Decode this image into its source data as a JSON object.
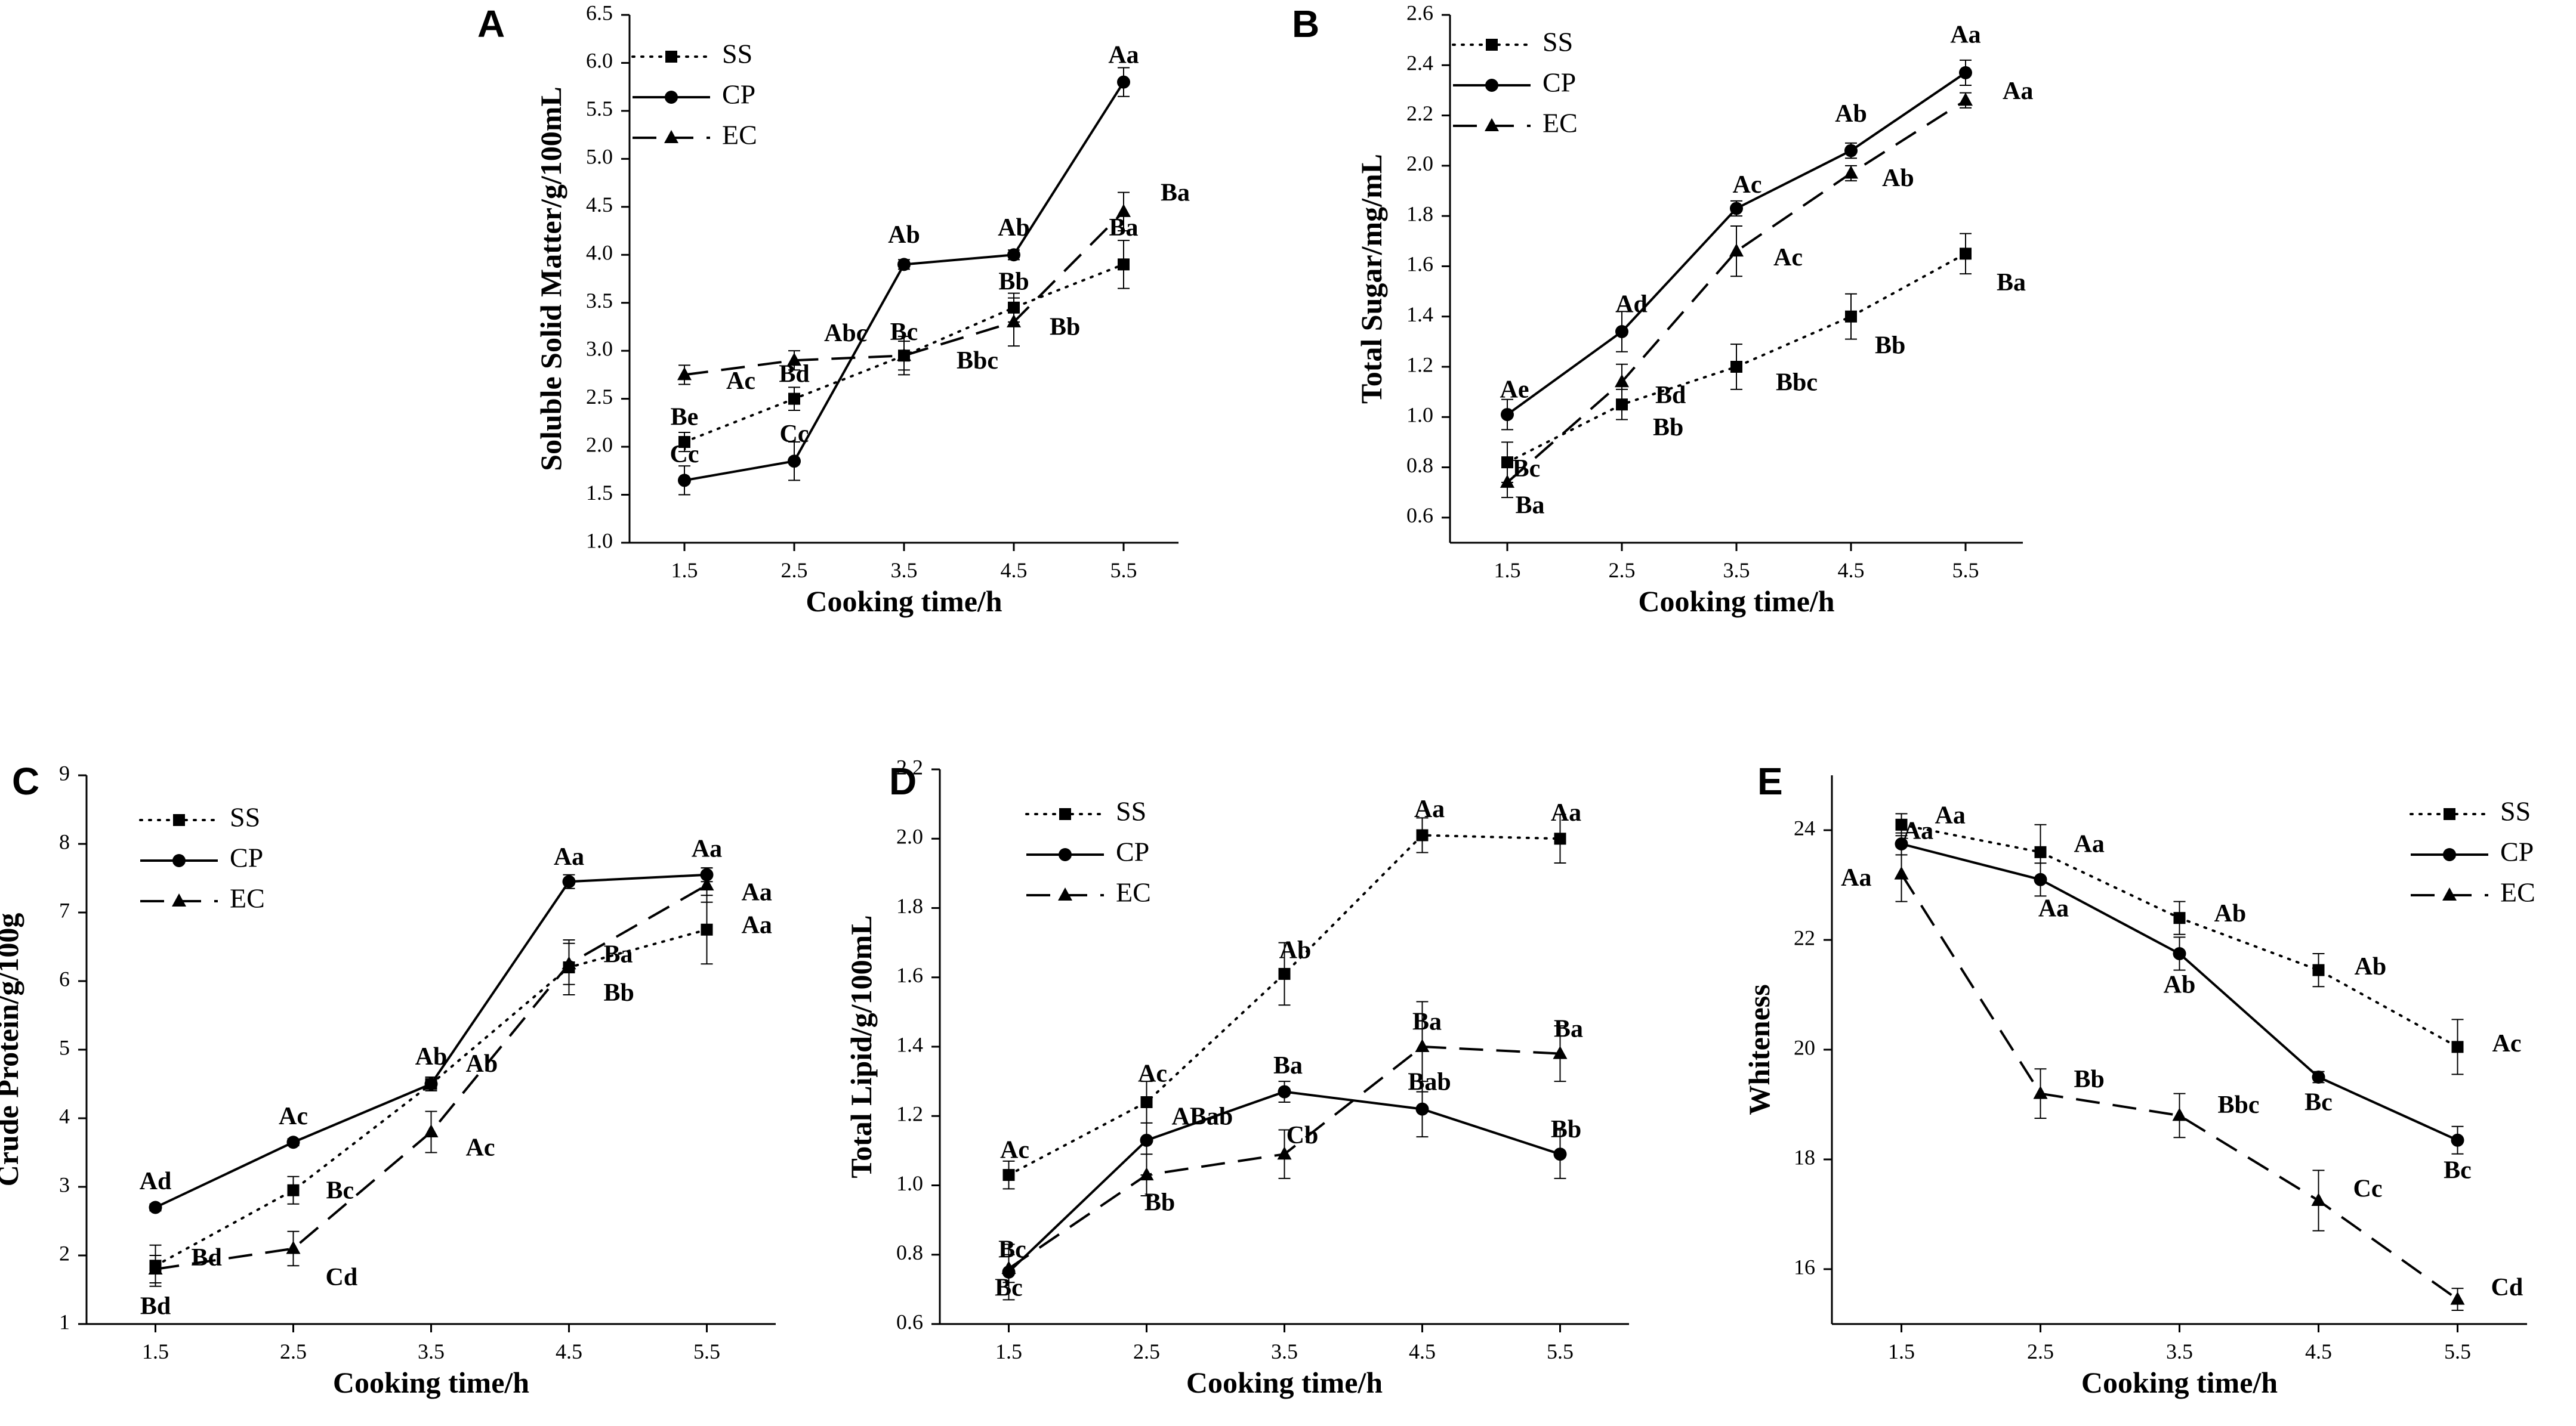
{
  "legend_series": [
    "SS",
    "CP",
    "EC"
  ],
  "chart_data": [
    {
      "panel": "A",
      "type": "line",
      "title": "",
      "xlabel": "Cooking time/h",
      "ylabel": "Soluble Solid Matter/g/100mL",
      "x": [
        1.5,
        2.5,
        3.5,
        4.5,
        5.5
      ],
      "x_ticks": [
        "1.5",
        "2.5",
        "3.5",
        "4.5",
        "5.5"
      ],
      "ylim": [
        1.0,
        6.5
      ],
      "y_ticks": [
        "1.0",
        "1.5",
        "2.0",
        "2.5",
        "3.0",
        "3.5",
        "4.0",
        "4.5",
        "5.0",
        "5.5",
        "6.0",
        "6.5"
      ],
      "legend": [
        "SS",
        "CP",
        "EC"
      ],
      "series": [
        {
          "name": "SS",
          "values": [
            2.05,
            2.5,
            2.95,
            3.45,
            3.9
          ],
          "errors": [
            0.1,
            0.12,
            0.2,
            0.15,
            0.25
          ],
          "labels": [
            "Be",
            "Bd",
            "Bc",
            "Bb",
            "Ba"
          ]
        },
        {
          "name": "CP",
          "values": [
            1.65,
            1.85,
            3.9,
            4.0,
            5.8
          ],
          "errors": [
            0.15,
            0.2,
            0.05,
            0.05,
            0.15
          ],
          "labels": [
            "Cc",
            "Cc",
            "Ab",
            "Ab",
            "Aa"
          ]
        },
        {
          "name": "EC",
          "values": [
            2.75,
            2.9,
            2.95,
            3.3,
            4.45
          ],
          "errors": [
            0.1,
            0.1,
            0.15,
            0.25,
            0.2
          ],
          "labels": [
            "Ac",
            "Abc",
            "Bbc",
            "Bb",
            "Ba"
          ]
        }
      ]
    },
    {
      "panel": "B",
      "type": "line",
      "title": "",
      "xlabel": "Cooking time/h",
      "ylabel": "Total Sugar/mg/mL",
      "x": [
        1.5,
        2.5,
        3.5,
        4.5,
        5.5
      ],
      "x_ticks": [
        "1.5",
        "2.5",
        "3.5",
        "4.5",
        "5.5"
      ],
      "ylim": [
        0.5,
        2.6
      ],
      "y_ticks": [
        "0.6",
        "0.8",
        "1.0",
        "1.2",
        "1.4",
        "1.6",
        "1.8",
        "2.0",
        "2.2",
        "2.4",
        "2.6"
      ],
      "legend": [
        "SS",
        "CP",
        "EC"
      ],
      "series": [
        {
          "name": "SS",
          "values": [
            0.82,
            1.05,
            1.2,
            1.4,
            1.65
          ],
          "errors": [
            0.08,
            0.06,
            0.09,
            0.09,
            0.08
          ],
          "labels": [
            "Bc",
            "Bb",
            "Bbc",
            "Bb",
            "Ba"
          ]
        },
        {
          "name": "CP",
          "values": [
            1.01,
            1.34,
            1.83,
            2.06,
            2.37
          ],
          "errors": [
            0.06,
            0.08,
            0.03,
            0.03,
            0.05
          ],
          "labels": [
            "Ae",
            "Ad",
            "Ac",
            "Ab",
            "Aa"
          ]
        },
        {
          "name": "EC",
          "values": [
            0.74,
            1.14,
            1.66,
            1.97,
            2.26
          ],
          "errors": [
            0.06,
            0.07,
            0.1,
            0.03,
            0.03
          ],
          "labels": [
            "Ba",
            "Bd",
            "Ac",
            "Ab",
            "Aa"
          ]
        }
      ]
    },
    {
      "panel": "C",
      "type": "line",
      "title": "",
      "xlabel": "Cooking time/h",
      "ylabel": "Crude Protein/g/100g",
      "x": [
        1.5,
        2.5,
        3.5,
        4.5,
        5.5
      ],
      "x_ticks": [
        "1.5",
        "2.5",
        "3.5",
        "4.5",
        "5.5"
      ],
      "ylim": [
        1,
        9
      ],
      "y_ticks": [
        "1",
        "2",
        "3",
        "4",
        "5",
        "6",
        "7",
        "8",
        "9"
      ],
      "legend": [
        "SS",
        "CP",
        "EC"
      ],
      "series": [
        {
          "name": "SS",
          "values": [
            1.85,
            2.95,
            4.5,
            6.2,
            6.75
          ],
          "errors": [
            0.3,
            0.2,
            0.1,
            0.4,
            0.5
          ],
          "labels": [
            "Bd",
            "Bc",
            "Ab",
            "Ba",
            "Aa"
          ]
        },
        {
          "name": "CP",
          "values": [
            2.7,
            3.65,
            4.5,
            7.45,
            7.55
          ],
          "errors": [
            0.05,
            0.05,
            0.05,
            0.1,
            0.1
          ],
          "labels": [
            "Ad",
            "Ac",
            "Ab",
            "Aa",
            "Aa"
          ]
        },
        {
          "name": "EC",
          "values": [
            1.8,
            2.1,
            3.8,
            6.25,
            7.4
          ],
          "errors": [
            0.2,
            0.25,
            0.3,
            0.3,
            0.25
          ],
          "labels": [
            "Bd",
            "Cd",
            "Ac",
            "Bb",
            "Aa"
          ]
        }
      ]
    },
    {
      "panel": "D",
      "type": "line",
      "title": "",
      "xlabel": "Cooking time/h",
      "ylabel": "Total Lipid/g/100mL",
      "x": [
        1.5,
        2.5,
        3.5,
        4.5,
        5.5
      ],
      "x_ticks": [
        "1.5",
        "2.5",
        "3.5",
        "4.5",
        "5.5"
      ],
      "ylim": [
        0.6,
        2.2
      ],
      "y_ticks": [
        "0.6",
        "0.8",
        "1.0",
        "1.2",
        "1.4",
        "1.6",
        "1.8",
        "2.0",
        "2.2"
      ],
      "legend": [
        "SS",
        "CP",
        "EC"
      ],
      "series": [
        {
          "name": "SS",
          "values": [
            1.03,
            1.24,
            1.61,
            2.01,
            2.0
          ],
          "errors": [
            0.04,
            0.06,
            0.09,
            0.05,
            0.07
          ],
          "labels": [
            "Ac",
            "Ac",
            "Ab",
            "Aa",
            "Aa"
          ]
        },
        {
          "name": "CP",
          "values": [
            0.75,
            1.13,
            1.27,
            1.22,
            1.09
          ],
          "errors": [
            0.08,
            0.1,
            0.03,
            0.08,
            0.07
          ],
          "labels": [
            "Bc",
            "ABab",
            "Ba",
            "Bab",
            "Bb"
          ]
        },
        {
          "name": "EC",
          "values": [
            0.76,
            1.03,
            1.09,
            1.4,
            1.38
          ],
          "errors": [
            0.04,
            0.06,
            0.07,
            0.13,
            0.08
          ],
          "labels": [
            "Bc",
            "Bb",
            "Cb",
            "Ba",
            "Ba"
          ]
        }
      ]
    },
    {
      "panel": "E",
      "type": "line",
      "title": "",
      "xlabel": "Cooking time/h",
      "ylabel": "Whiteness",
      "x": [
        1.5,
        2.5,
        3.5,
        4.5,
        5.5
      ],
      "x_ticks": [
        "1.5",
        "2.5",
        "3.5",
        "4.5",
        "5.5"
      ],
      "ylim": [
        15,
        25
      ],
      "y_ticks": [
        "16",
        "18",
        "20",
        "22",
        "24"
      ],
      "legend": [
        "SS",
        "CP",
        "EC"
      ],
      "series": [
        {
          "name": "SS",
          "values": [
            24.1,
            23.6,
            22.4,
            21.45,
            20.05
          ],
          "errors": [
            0.2,
            0.5,
            0.3,
            0.3,
            0.5
          ],
          "labels": [
            "Aa",
            "Aa",
            "Ab",
            "Ab",
            "Ac"
          ]
        },
        {
          "name": "CP",
          "values": [
            23.75,
            23.1,
            21.75,
            19.5,
            18.35
          ],
          "errors": [
            0.2,
            0.3,
            0.3,
            0.1,
            0.25
          ],
          "labels": [
            "Aa",
            "Aa",
            "Ab",
            "Bc",
            "Bc"
          ]
        },
        {
          "name": "EC",
          "values": [
            23.2,
            19.2,
            18.8,
            17.25,
            15.45
          ],
          "errors": [
            0.5,
            0.45,
            0.4,
            0.55,
            0.2
          ],
          "labels": [
            "Aa",
            "Bb",
            "Bbc",
            "Cc",
            "Cd"
          ]
        }
      ]
    }
  ]
}
